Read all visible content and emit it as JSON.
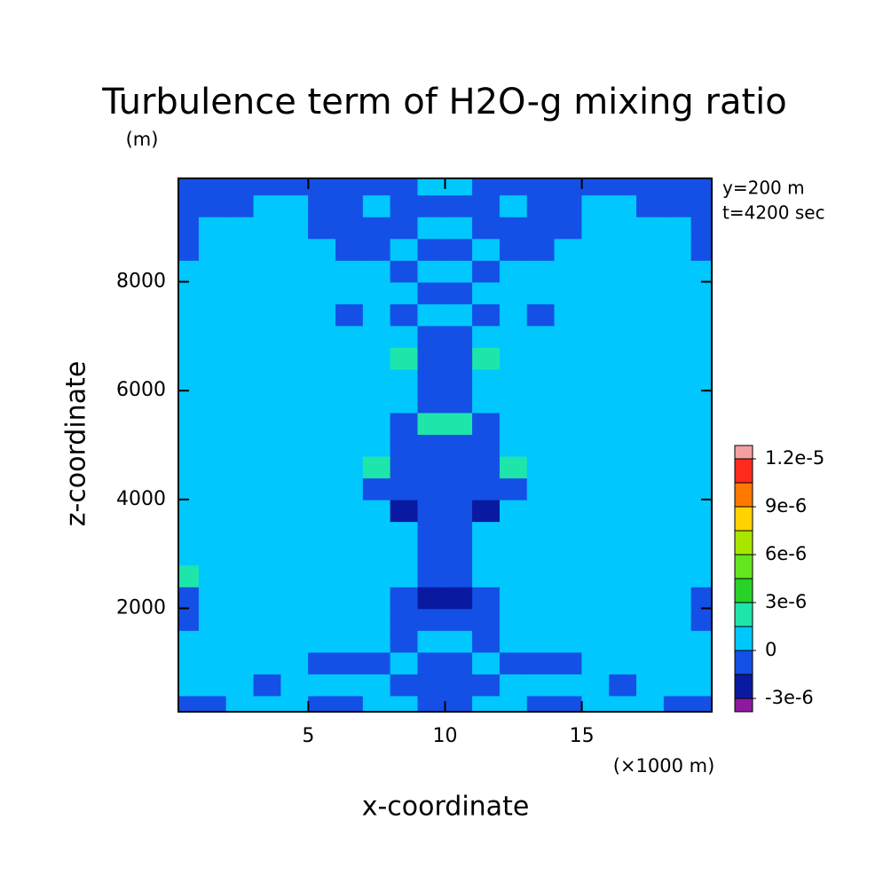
{
  "chart_data": {
    "type": "contour",
    "title": "Turbulence term of H2O-g mixing ratio",
    "y_unit": "(m)",
    "x_unit": "(×1000 m)",
    "x_label": "x-coordinate",
    "y_label": "z-coordinate",
    "annotations": [
      "y=200 m",
      "t=4200 sec"
    ],
    "xlim": [
      0.25,
      19.75
    ],
    "xticks": [
      5,
      10,
      15
    ],
    "ylim": [
      100,
      9900
    ],
    "yticks": [
      2000,
      4000,
      6000,
      8000
    ],
    "x": [
      0.5,
      1.5,
      2.5,
      3.5,
      4.5,
      5.5,
      6.5,
      7.5,
      8.5,
      9.5,
      10.5,
      11.5,
      12.5,
      13.5,
      14.5,
      15.5,
      16.5,
      17.5,
      18.5,
      19.5
    ],
    "y": [
      200,
      600,
      1000,
      1400,
      1800,
      2200,
      2600,
      3000,
      3400,
      3800,
      4200,
      4600,
      5000,
      5400,
      5800,
      6200,
      6600,
      7000,
      7400,
      7800,
      8200,
      8600,
      9000,
      9400,
      9800
    ],
    "z": [
      [
        -1e-06,
        -1e-06,
        1e-07,
        1e-07,
        1e-07,
        -1e-06,
        -1e-06,
        1e-07,
        1e-07,
        -1e-06,
        -1e-06,
        1e-07,
        1e-07,
        -1e-06,
        -1e-06,
        1e-07,
        1e-07,
        1e-07,
        -1e-06,
        -1e-06
      ],
      [
        1e-07,
        1e-07,
        1e-07,
        -1e-06,
        1e-07,
        1e-07,
        1e-07,
        1e-07,
        -1e-06,
        -1e-06,
        -1e-06,
        -1e-06,
        1e-07,
        1e-07,
        1e-07,
        1e-07,
        -1e-06,
        1e-07,
        1e-07,
        1e-07
      ],
      [
        1e-07,
        1e-07,
        1e-07,
        1e-07,
        1e-07,
        -1e-06,
        -1e-06,
        -1e-06,
        1e-07,
        -1e-06,
        -1e-06,
        1e-07,
        -1e-06,
        -1e-06,
        -1e-06,
        1e-07,
        1e-07,
        1e-07,
        1e-07,
        1e-07
      ],
      [
        1e-07,
        1e-07,
        1e-07,
        1e-07,
        1e-07,
        1e-07,
        1e-07,
        1e-07,
        -1e-06,
        1e-07,
        1e-07,
        -1e-06,
        1e-07,
        1e-07,
        1e-07,
        1e-07,
        1e-07,
        1e-07,
        1e-07,
        1e-07
      ],
      [
        -1e-06,
        1e-07,
        1e-07,
        1e-07,
        1e-07,
        1e-07,
        1e-07,
        1e-07,
        -1e-06,
        -1e-06,
        -1e-06,
        -1e-06,
        1e-07,
        1e-07,
        1e-07,
        1e-07,
        1e-07,
        1e-07,
        1e-07,
        -1e-06
      ],
      [
        -1e-06,
        1e-07,
        1e-07,
        1e-07,
        1e-07,
        1e-07,
        1e-07,
        1e-07,
        -1e-06,
        -2e-06,
        -2e-06,
        -1e-06,
        1e-07,
        1e-07,
        1e-07,
        1e-07,
        1e-07,
        1e-07,
        1e-07,
        -1e-06
      ],
      [
        2e-06,
        1e-07,
        1e-07,
        1e-07,
        1e-07,
        1e-07,
        1e-07,
        1e-07,
        1e-07,
        -1e-06,
        -1e-06,
        1e-07,
        1e-07,
        1e-07,
        1e-07,
        1e-07,
        1e-07,
        1e-07,
        1e-07,
        1e-07
      ],
      [
        1e-07,
        1e-07,
        1e-07,
        1e-07,
        1e-07,
        1e-07,
        1e-07,
        1e-07,
        1e-07,
        -1e-06,
        -1e-06,
        1e-07,
        1e-07,
        1e-07,
        1e-07,
        1e-07,
        1e-07,
        1e-07,
        1e-07,
        1e-07
      ],
      [
        1e-07,
        1e-07,
        1e-07,
        1e-07,
        1e-07,
        1e-07,
        1e-07,
        1e-07,
        1e-07,
        -1e-06,
        -1e-06,
        1e-07,
        1e-07,
        1e-07,
        1e-07,
        1e-07,
        1e-07,
        1e-07,
        1e-07,
        1e-07
      ],
      [
        1e-07,
        1e-07,
        1e-07,
        1e-07,
        1e-07,
        1e-07,
        1e-07,
        1e-07,
        -2e-06,
        -1e-06,
        -1e-06,
        -2e-06,
        1e-07,
        1e-07,
        1e-07,
        1e-07,
        1e-07,
        1e-07,
        1e-07,
        1e-07
      ],
      [
        1e-07,
        1e-07,
        1e-07,
        1e-07,
        1e-07,
        1e-07,
        1e-07,
        -1e-06,
        -1e-06,
        -1e-06,
        -1e-06,
        -1e-06,
        -1e-06,
        1e-07,
        1e-07,
        1e-07,
        1e-07,
        1e-07,
        1e-07,
        1e-07
      ],
      [
        1e-07,
        1e-07,
        1e-07,
        1e-07,
        1e-07,
        1e-07,
        1e-07,
        2e-06,
        -1e-06,
        -1e-06,
        -1e-06,
        -1e-06,
        2e-06,
        1e-07,
        1e-07,
        1e-07,
        1e-07,
        1e-07,
        1e-07,
        1e-07
      ],
      [
        1e-07,
        1e-07,
        1e-07,
        1e-07,
        1e-07,
        1e-07,
        1e-07,
        1e-07,
        -1e-06,
        -1e-06,
        -1e-06,
        -1e-06,
        1e-07,
        1e-07,
        1e-07,
        1e-07,
        1e-07,
        1e-07,
        1e-07,
        1e-07
      ],
      [
        1e-07,
        1e-07,
        1e-07,
        1e-07,
        1e-07,
        1e-07,
        1e-07,
        1e-07,
        -1e-06,
        2e-06,
        2e-06,
        -1e-06,
        1e-07,
        1e-07,
        1e-07,
        1e-07,
        1e-07,
        1e-07,
        1e-07,
        1e-07
      ],
      [
        1e-07,
        1e-07,
        1e-07,
        1e-07,
        1e-07,
        1e-07,
        1e-07,
        1e-07,
        1e-07,
        -1e-06,
        -1e-06,
        1e-07,
        1e-07,
        1e-07,
        1e-07,
        1e-07,
        1e-07,
        1e-07,
        1e-07,
        1e-07
      ],
      [
        1e-07,
        1e-07,
        1e-07,
        1e-07,
        1e-07,
        1e-07,
        1e-07,
        1e-07,
        1e-07,
        -1e-06,
        -1e-06,
        1e-07,
        1e-07,
        1e-07,
        1e-07,
        1e-07,
        1e-07,
        1e-07,
        1e-07,
        1e-07
      ],
      [
        1e-07,
        1e-07,
        1e-07,
        1e-07,
        1e-07,
        1e-07,
        1e-07,
        1e-07,
        2e-06,
        -1e-06,
        -1e-06,
        2e-06,
        1e-07,
        1e-07,
        1e-07,
        1e-07,
        1e-07,
        1e-07,
        1e-07,
        1e-07
      ],
      [
        1e-07,
        1e-07,
        1e-07,
        1e-07,
        1e-07,
        1e-07,
        1e-07,
        1e-07,
        1e-07,
        -1e-06,
        -1e-06,
        1e-07,
        1e-07,
        1e-07,
        1e-07,
        1e-07,
        1e-07,
        1e-07,
        1e-07,
        1e-07
      ],
      [
        1e-07,
        1e-07,
        1e-07,
        1e-07,
        1e-07,
        1e-07,
        -1e-06,
        1e-07,
        -1e-06,
        1e-07,
        1e-07,
        -1e-06,
        1e-07,
        -1e-06,
        1e-07,
        1e-07,
        1e-07,
        1e-07,
        1e-07,
        1e-07
      ],
      [
        1e-07,
        1e-07,
        1e-07,
        1e-07,
        1e-07,
        1e-07,
        1e-07,
        1e-07,
        1e-07,
        -1e-06,
        -1e-06,
        1e-07,
        1e-07,
        1e-07,
        1e-07,
        1e-07,
        1e-07,
        1e-07,
        1e-07,
        1e-07
      ],
      [
        1e-07,
        1e-07,
        1e-07,
        1e-07,
        1e-07,
        1e-07,
        1e-07,
        1e-07,
        -1e-06,
        1e-07,
        1e-07,
        -1e-06,
        1e-07,
        1e-07,
        1e-07,
        1e-07,
        1e-07,
        1e-07,
        1e-07,
        1e-07
      ],
      [
        -1e-06,
        1e-07,
        1e-07,
        1e-07,
        1e-07,
        1e-07,
        -1e-06,
        -1e-06,
        1e-07,
        -1e-06,
        -1e-06,
        1e-07,
        -1e-06,
        -1e-06,
        1e-07,
        1e-07,
        1e-07,
        1e-07,
        1e-07,
        -1e-06
      ],
      [
        -1e-06,
        1e-07,
        1e-07,
        1e-07,
        1e-07,
        -1e-06,
        -1e-06,
        -1e-06,
        -1e-06,
        1e-07,
        1e-07,
        -1e-06,
        -1e-06,
        -1e-06,
        -1e-06,
        1e-07,
        1e-07,
        1e-07,
        1e-07,
        -1e-06
      ],
      [
        -1e-06,
        -1e-06,
        -1e-06,
        1e-07,
        1e-07,
        -1e-06,
        -1e-06,
        1e-07,
        -1e-06,
        -1e-06,
        -1e-06,
        -1e-06,
        1e-07,
        -1e-06,
        -1e-06,
        1e-07,
        1e-07,
        -1e-06,
        -1e-06,
        -1e-06
      ],
      [
        -1e-06,
        -1e-06,
        -1e-06,
        -1e-06,
        -1e-06,
        -1e-06,
        -1e-06,
        -1e-06,
        -1e-06,
        1e-07,
        1e-07,
        -1e-06,
        -1e-06,
        -1e-06,
        -1e-06,
        -1e-06,
        -1e-06,
        -1e-06,
        -1e-06,
        -1e-06
      ]
    ],
    "colorbar": {
      "levels": [
        -3e-06,
        -1.5e-06,
        0,
        1.5e-06,
        3e-06,
        4.5e-06,
        6e-06,
        7.5e-06,
        9e-06,
        1.05e-05,
        1.2e-05
      ],
      "colors": [
        "#8c1aa0",
        "#0a1aa0",
        "#1450e6",
        "#00c8ff",
        "#1ee6aa",
        "#28d228",
        "#64e61e",
        "#a8e600",
        "#ffd200",
        "#ff7800",
        "#ff2a1e",
        "#f5a0a0"
      ],
      "ticks": [
        {
          "value": -3e-06,
          "label": "-3e-6"
        },
        0,
        {
          "value": 3e-06,
          "label": "3e-6"
        },
        {
          "value": 6e-06,
          "label": "6e-6"
        },
        {
          "value": 9e-06,
          "label": "9e-6"
        },
        {
          "value": 1.2e-05,
          "label": "1.2e-5"
        }
      ]
    }
  }
}
